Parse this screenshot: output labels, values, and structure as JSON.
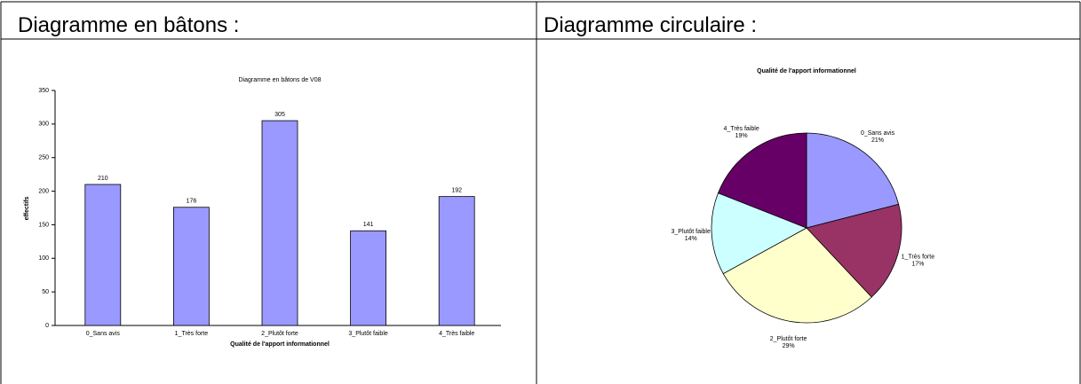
{
  "headings": [
    "Diagramme en bâtons :",
    "Diagramme circulaire :"
  ],
  "chart_data": [
    {
      "type": "bar",
      "title": "Diagramme en bâtons de V08",
      "x_label": "Qualité de l'apport informationnel",
      "y_label": "effectifs",
      "categories": [
        "0_Sans avis",
        "1_Très forte",
        "2_Plutôt forte",
        "3_Plutôt faible",
        "4_Très faible"
      ],
      "values": [
        210,
        176,
        305,
        141,
        192
      ],
      "color": "#9999ff",
      "ylim": [
        0,
        350
      ],
      "yticks": [
        0,
        50,
        100,
        150,
        200,
        250,
        300,
        350
      ]
    },
    {
      "type": "pie",
      "title": "Qualité de l'apport informationnel",
      "categories": [
        "0_Sans avis",
        "1_Très forte",
        "2_Plutôt forte",
        "3_Plutôt faible",
        "4_Très faible"
      ],
      "values": [
        21,
        17,
        29,
        14,
        19
      ],
      "value_labels": [
        "21%",
        "17%",
        "29%",
        "14%",
        "19%"
      ],
      "colors": [
        "#9999ff",
        "#993366",
        "#ffffcc",
        "#ccffff",
        "#660066"
      ]
    }
  ]
}
